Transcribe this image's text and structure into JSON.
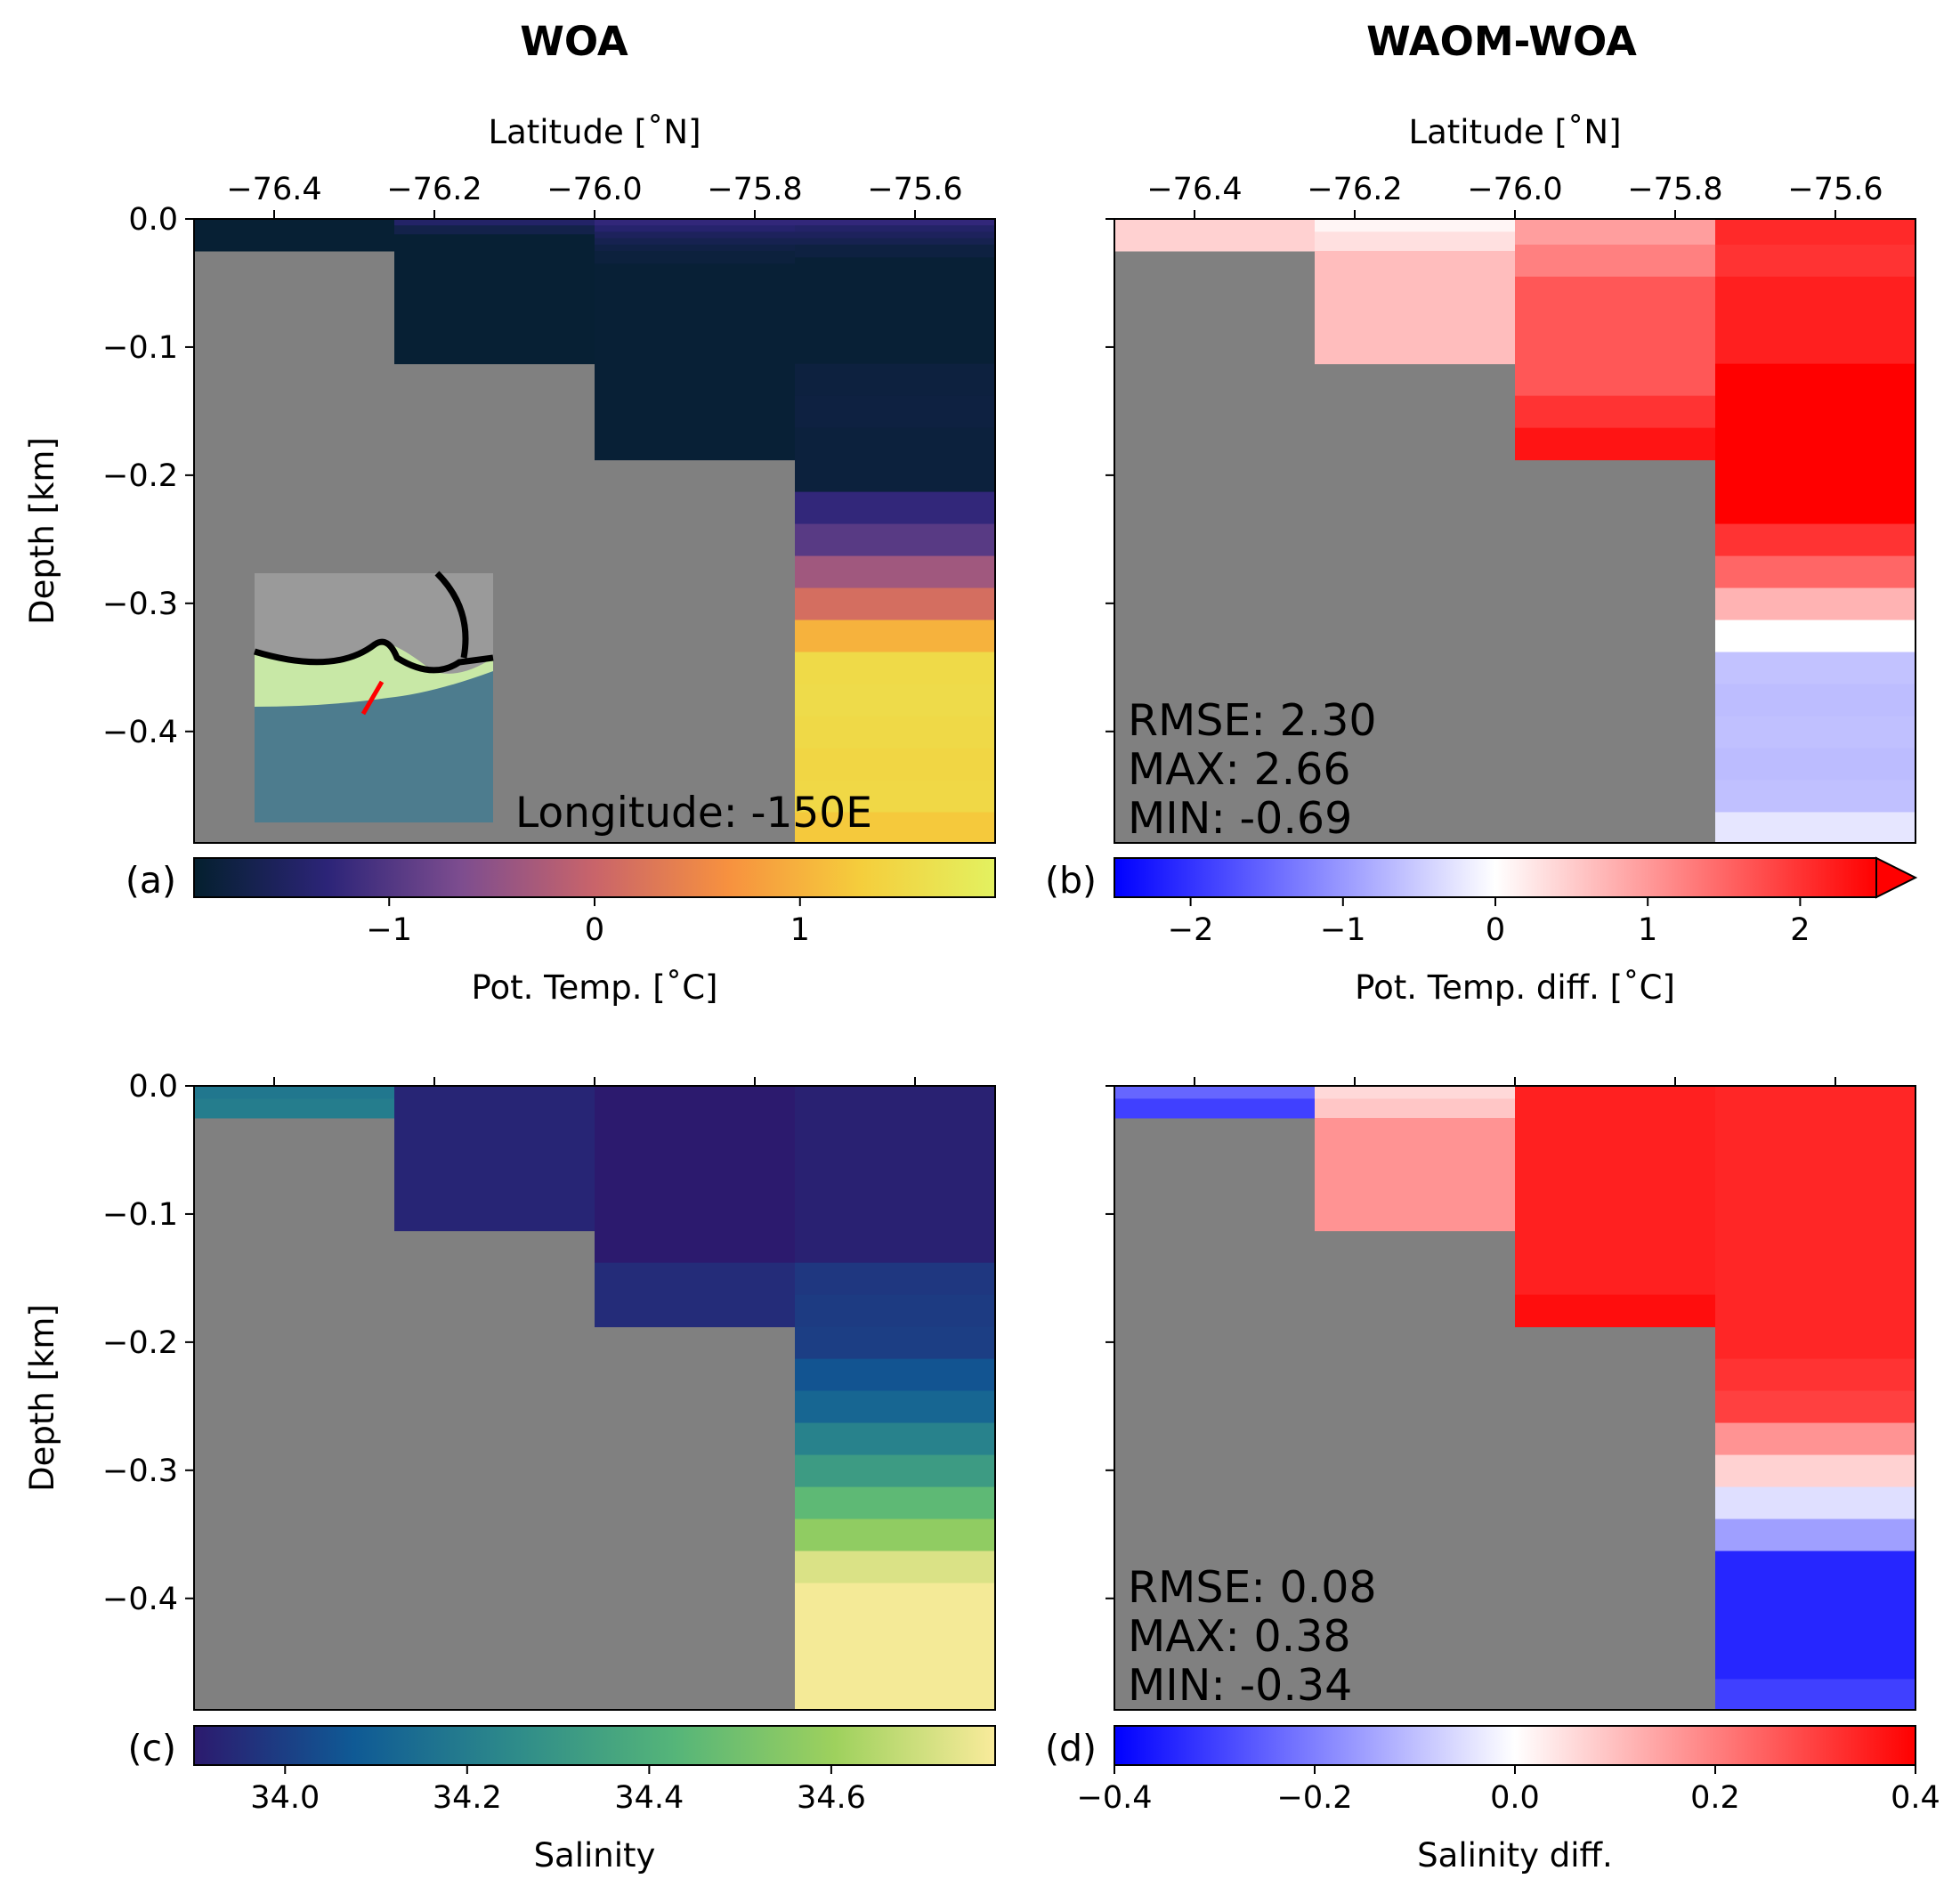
{
  "column_titles": {
    "left": "WOA",
    "right": "WAOM-WOA"
  },
  "chart_data": [
    {
      "id": "a",
      "type": "heatmap",
      "panel_label": "(a)",
      "x_axis": {
        "label": "Latitude [˚N]",
        "position": "top",
        "ticks": [
          -76.4,
          -76.2,
          -76.0,
          -75.8,
          -75.6
        ],
        "tick_labels": [
          "−76.4",
          "−76.2",
          "−76.0",
          "−75.8",
          "−75.6"
        ],
        "xlim": [
          -76.5,
          -75.5
        ]
      },
      "y_axis": {
        "label": "Depth [km]",
        "ticks": [
          0.0,
          -0.1,
          -0.2,
          -0.3,
          -0.4
        ],
        "tick_labels": [
          "0.0",
          "−0.1",
          "−0.2",
          "−0.3",
          "−0.4"
        ],
        "ylim": [
          -0.487,
          0.0
        ]
      },
      "land_color": "#808080",
      "colormap": [
        "#04202e",
        "#2c2478",
        "#7d4d8f",
        "#c9646a",
        "#f7913f",
        "#f5ce3c",
        "#e3f160"
      ],
      "vmin": -1.95,
      "vmax": 1.95,
      "colorbar": {
        "label": "Pot. Temp. [˚C]",
        "ticks": [
          -1,
          0,
          1
        ],
        "tick_labels": [
          "−1",
          "0",
          "1"
        ],
        "extend": "neither"
      },
      "inset": {
        "label": "Longitude: -150E",
        "description_colors": {
          "land": "#9a9a9a",
          "coast": "#000000",
          "section": "#ff0000"
        }
      },
      "columns": [
        {
          "lat_edges": [
            -76.5,
            -76.25
          ],
          "cells": [
            {
              "top": 0.0,
              "bottom": -0.025,
              "value": -1.9
            }
          ]
        },
        {
          "lat_edges": [
            -76.25,
            -76.0
          ],
          "cells": [
            {
              "top": 0.0,
              "bottom": -0.005,
              "value": -1.45
            },
            {
              "top": -0.005,
              "bottom": -0.012,
              "value": -1.7
            },
            {
              "top": -0.012,
              "bottom": -0.113,
              "value": -1.9
            }
          ]
        },
        {
          "lat_edges": [
            -76.0,
            -75.75
          ],
          "cells": [
            {
              "top": 0.0,
              "bottom": -0.005,
              "value": -1.25
            },
            {
              "top": -0.005,
              "bottom": -0.01,
              "value": -1.4
            },
            {
              "top": -0.01,
              "bottom": -0.015,
              "value": -1.55
            },
            {
              "top": -0.015,
              "bottom": -0.02,
              "value": -1.65
            },
            {
              "top": -0.02,
              "bottom": -0.025,
              "value": -1.75
            },
            {
              "top": -0.025,
              "bottom": -0.035,
              "value": -1.82
            },
            {
              "top": -0.035,
              "bottom": -0.188,
              "value": -1.88
            }
          ]
        },
        {
          "lat_edges": [
            -75.75,
            -75.5
          ],
          "cells": [
            {
              "top": 0.0,
              "bottom": -0.005,
              "value": -1.25
            },
            {
              "top": -0.005,
              "bottom": -0.01,
              "value": -1.45
            },
            {
              "top": -0.01,
              "bottom": -0.015,
              "value": -1.55
            },
            {
              "top": -0.015,
              "bottom": -0.02,
              "value": -1.65
            },
            {
              "top": -0.02,
              "bottom": -0.03,
              "value": -1.78
            },
            {
              "top": -0.03,
              "bottom": -0.113,
              "value": -1.88
            },
            {
              "top": -0.113,
              "bottom": -0.138,
              "value": -1.8
            },
            {
              "top": -0.138,
              "bottom": -0.163,
              "value": -1.78
            },
            {
              "top": -0.163,
              "bottom": -0.213,
              "value": -1.82
            },
            {
              "top": -0.213,
              "bottom": -0.238,
              "value": -1.25
            },
            {
              "top": -0.238,
              "bottom": -0.263,
              "value": -0.95
            },
            {
              "top": -0.263,
              "bottom": -0.288,
              "value": -0.35
            },
            {
              "top": -0.288,
              "bottom": -0.313,
              "value": 0.15
            },
            {
              "top": -0.313,
              "bottom": -0.338,
              "value": 1.0
            },
            {
              "top": -0.338,
              "bottom": -0.363,
              "value": 1.52
            },
            {
              "top": -0.363,
              "bottom": -0.388,
              "value": 1.55
            },
            {
              "top": -0.388,
              "bottom": -0.413,
              "value": 1.5
            },
            {
              "top": -0.413,
              "bottom": -0.438,
              "value": 1.45
            },
            {
              "top": -0.438,
              "bottom": -0.463,
              "value": 1.48
            },
            {
              "top": -0.463,
              "bottom": -0.487,
              "value": 1.25
            }
          ]
        }
      ]
    },
    {
      "id": "b",
      "type": "heatmap",
      "panel_label": "(b)",
      "x_axis": {
        "label": "Latitude [˚N]",
        "position": "top",
        "ticks": [
          -76.4,
          -76.2,
          -76.0,
          -75.8,
          -75.6
        ],
        "tick_labels": [
          "−76.4",
          "−76.2",
          "−76.0",
          "−75.8",
          "−75.6"
        ],
        "xlim": [
          -76.5,
          -75.5
        ]
      },
      "y_axis": {
        "label": "",
        "ticks": [
          0.0,
          -0.1,
          -0.2,
          -0.3,
          -0.4
        ],
        "tick_labels": [],
        "ylim": [
          -0.487,
          0.0
        ]
      },
      "land_color": "#808080",
      "colormap": [
        "#0000ff",
        "#ffffff",
        "#ff0000"
      ],
      "vmin": -2.5,
      "vmax": 2.5,
      "colorbar": {
        "label": "Pot. Temp. diff. [˚C]",
        "ticks": [
          -2,
          -1,
          0,
          1,
          2
        ],
        "tick_labels": [
          "−2",
          "−1",
          "0",
          "1",
          "2"
        ],
        "extend": "max"
      },
      "stats": [
        "RMSE: 2.30",
        "MAX:  2.66",
        "MIN:  -0.69"
      ],
      "columns": [
        {
          "lat_edges": [
            -76.5,
            -76.25
          ],
          "cells": [
            {
              "top": 0.0,
              "bottom": -0.025,
              "value": 0.45
            }
          ]
        },
        {
          "lat_edges": [
            -76.25,
            -76.0
          ],
          "cells": [
            {
              "top": 0.0,
              "bottom": -0.01,
              "value": 0.1
            },
            {
              "top": -0.01,
              "bottom": -0.025,
              "value": 0.3
            },
            {
              "top": -0.025,
              "bottom": -0.113,
              "value": 0.65
            }
          ]
        },
        {
          "lat_edges": [
            -76.0,
            -75.75
          ],
          "cells": [
            {
              "top": 0.0,
              "bottom": -0.02,
              "value": 0.95
            },
            {
              "top": -0.02,
              "bottom": -0.045,
              "value": 1.25
            },
            {
              "top": -0.045,
              "bottom": -0.138,
              "value": 1.65
            },
            {
              "top": -0.138,
              "bottom": -0.163,
              "value": 2.0
            },
            {
              "top": -0.163,
              "bottom": -0.188,
              "value": 2.3
            }
          ]
        },
        {
          "lat_edges": [
            -75.75,
            -75.5
          ],
          "cells": [
            {
              "top": 0.0,
              "bottom": -0.02,
              "value": 2.1
            },
            {
              "top": -0.02,
              "bottom": -0.045,
              "value": 2.0
            },
            {
              "top": -0.045,
              "bottom": -0.113,
              "value": 2.2
            },
            {
              "top": -0.113,
              "bottom": -0.238,
              "value": 2.6
            },
            {
              "top": -0.238,
              "bottom": -0.263,
              "value": 2.0
            },
            {
              "top": -0.263,
              "bottom": -0.288,
              "value": 1.5
            },
            {
              "top": -0.288,
              "bottom": -0.313,
              "value": 0.75
            },
            {
              "top": -0.313,
              "bottom": -0.338,
              "value": 0.0
            },
            {
              "top": -0.338,
              "bottom": -0.363,
              "value": -0.6
            },
            {
              "top": -0.363,
              "bottom": -0.388,
              "value": -0.65
            },
            {
              "top": -0.388,
              "bottom": -0.413,
              "value": -0.62
            },
            {
              "top": -0.413,
              "bottom": -0.438,
              "value": -0.66
            },
            {
              "top": -0.438,
              "bottom": -0.463,
              "value": -0.62
            },
            {
              "top": -0.463,
              "bottom": -0.487,
              "value": -0.25
            }
          ]
        }
      ]
    },
    {
      "id": "c",
      "type": "heatmap",
      "panel_label": "(c)",
      "x_axis": {
        "label": "",
        "position": "top",
        "ticks": [
          -76.4,
          -76.2,
          -76.0,
          -75.8,
          -75.6
        ],
        "tick_labels": [],
        "xlim": [
          -76.5,
          -75.5
        ]
      },
      "y_axis": {
        "label": "Depth [km]",
        "ticks": [
          0.0,
          -0.1,
          -0.2,
          -0.3,
          -0.4
        ],
        "tick_labels": [
          "0.0",
          "−0.1",
          "−0.2",
          "−0.3",
          "−0.4"
        ],
        "ylim": [
          -0.487,
          0.0
        ]
      },
      "land_color": "#808080",
      "colormap": [
        "#2c1a6e",
        "#0f5a95",
        "#2e8b8a",
        "#55b579",
        "#9ed15d",
        "#f9eb9b"
      ],
      "vmin": 33.9,
      "vmax": 34.78,
      "colorbar": {
        "label": "Salinity",
        "ticks": [
          34.0,
          34.2,
          34.4,
          34.6
        ],
        "tick_labels": [
          "34.0",
          "34.2",
          "34.4",
          "34.6"
        ],
        "extend": "neither"
      },
      "columns": [
        {
          "lat_edges": [
            -76.5,
            -76.25
          ],
          "cells": [
            {
              "top": 0.0,
              "bottom": -0.01,
              "value": 34.18
            },
            {
              "top": -0.01,
              "bottom": -0.025,
              "value": 34.2
            }
          ]
        },
        {
          "lat_edges": [
            -76.25,
            -76.0
          ],
          "cells": [
            {
              "top": 0.0,
              "bottom": -0.113,
              "value": 33.93
            }
          ]
        },
        {
          "lat_edges": [
            -76.0,
            -75.75
          ],
          "cells": [
            {
              "top": 0.0,
              "bottom": -0.138,
              "value": 33.9
            },
            {
              "top": -0.138,
              "bottom": -0.188,
              "value": 33.95
            }
          ]
        },
        {
          "lat_edges": [
            -75.75,
            -75.5
          ],
          "cells": [
            {
              "top": 0.0,
              "bottom": -0.138,
              "value": 33.92
            },
            {
              "top": -0.138,
              "bottom": -0.163,
              "value": 33.98
            },
            {
              "top": -0.163,
              "bottom": -0.188,
              "value": 33.99
            },
            {
              "top": -0.188,
              "bottom": -0.213,
              "value": 34.0
            },
            {
              "top": -0.213,
              "bottom": -0.238,
              "value": 34.06
            },
            {
              "top": -0.238,
              "bottom": -0.263,
              "value": 34.12
            },
            {
              "top": -0.263,
              "bottom": -0.288,
              "value": 34.22
            },
            {
              "top": -0.288,
              "bottom": -0.313,
              "value": 34.32
            },
            {
              "top": -0.313,
              "bottom": -0.338,
              "value": 34.45
            },
            {
              "top": -0.338,
              "bottom": -0.363,
              "value": 34.57
            },
            {
              "top": -0.363,
              "bottom": -0.388,
              "value": 34.72
            },
            {
              "top": -0.388,
              "bottom": -0.487,
              "value": 34.77
            }
          ]
        }
      ]
    },
    {
      "id": "d",
      "type": "heatmap",
      "panel_label": "(d)",
      "x_axis": {
        "label": "",
        "position": "top",
        "ticks": [
          -76.4,
          -76.2,
          -76.0,
          -75.8,
          -75.6
        ],
        "tick_labels": [],
        "xlim": [
          -76.5,
          -75.5
        ]
      },
      "y_axis": {
        "label": "",
        "ticks": [
          0.0,
          -0.1,
          -0.2,
          -0.3,
          -0.4
        ],
        "tick_labels": [],
        "ylim": [
          -0.487,
          0.0
        ]
      },
      "land_color": "#808080",
      "colormap": [
        "#0000ff",
        "#ffffff",
        "#ff0000"
      ],
      "vmin": -0.4,
      "vmax": 0.4,
      "colorbar": {
        "label": "Salinity diff.",
        "ticks": [
          -0.4,
          -0.2,
          0.0,
          0.2,
          0.4
        ],
        "tick_labels": [
          "−0.4",
          "−0.2",
          "0.0",
          "0.2",
          "0.4"
        ],
        "extend": "neither"
      },
      "stats": [
        "RMSE: 0.08",
        "MAX:  0.38",
        "MIN:  -0.34"
      ],
      "columns": [
        {
          "lat_edges": [
            -76.5,
            -76.25
          ],
          "cells": [
            {
              "top": 0.0,
              "bottom": -0.01,
              "value": -0.24
            },
            {
              "top": -0.01,
              "bottom": -0.025,
              "value": -0.3
            }
          ]
        },
        {
          "lat_edges": [
            -76.25,
            -76.0
          ],
          "cells": [
            {
              "top": 0.0,
              "bottom": -0.01,
              "value": 0.06
            },
            {
              "top": -0.01,
              "bottom": -0.025,
              "value": 0.09
            },
            {
              "top": -0.025,
              "bottom": -0.113,
              "value": 0.17
            }
          ]
        },
        {
          "lat_edges": [
            -76.0,
            -75.75
          ],
          "cells": [
            {
              "top": 0.0,
              "bottom": -0.163,
              "value": 0.35
            },
            {
              "top": -0.163,
              "bottom": -0.188,
              "value": 0.38
            }
          ]
        },
        {
          "lat_edges": [
            -75.75,
            -75.5
          ],
          "cells": [
            {
              "top": 0.0,
              "bottom": -0.213,
              "value": 0.34
            },
            {
              "top": -0.213,
              "bottom": -0.238,
              "value": 0.32
            },
            {
              "top": -0.238,
              "bottom": -0.263,
              "value": 0.3
            },
            {
              "top": -0.263,
              "bottom": -0.288,
              "value": 0.17
            },
            {
              "top": -0.288,
              "bottom": -0.313,
              "value": 0.07
            },
            {
              "top": -0.313,
              "bottom": -0.338,
              "value": -0.05
            },
            {
              "top": -0.338,
              "bottom": -0.363,
              "value": -0.15
            },
            {
              "top": -0.363,
              "bottom": -0.463,
              "value": -0.34
            },
            {
              "top": -0.463,
              "bottom": -0.487,
              "value": -0.3
            }
          ]
        }
      ]
    }
  ]
}
